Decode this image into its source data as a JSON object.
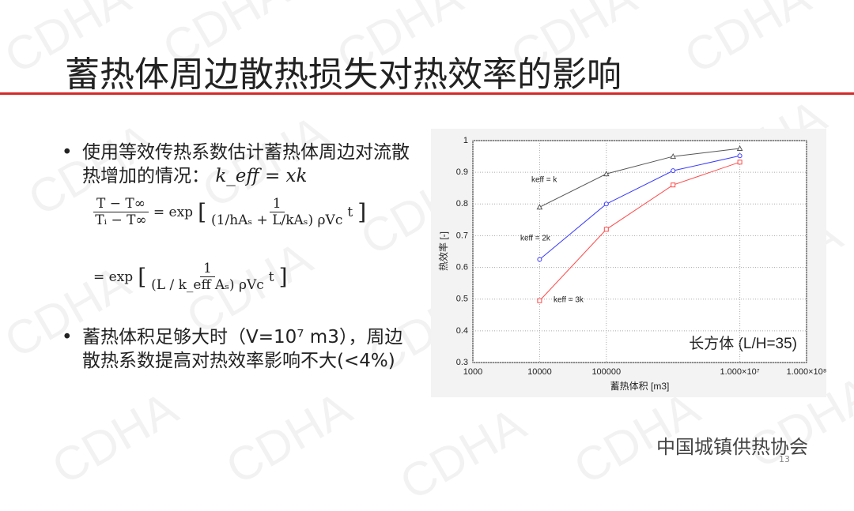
{
  "slide": {
    "title": "蓄热体周边散热损失对热效率的影响",
    "watermark": "CDHA",
    "bullet1": "使用等效传热系数估计蓄热体周边对流散热增加的情况：",
    "bullet1_math": "k_eff = xk",
    "eq1": {
      "lhs_num": "T − T∞",
      "lhs_den": "Tᵢ − T∞",
      "eq": "= exp",
      "num": "1",
      "den": "(1/hAₛ + L/kAₛ) ρVc",
      "t": "t"
    },
    "eq2": {
      "eq": "= exp",
      "num": "1",
      "den": "(L / k_eff Aₛ) ρVc",
      "t": "t"
    },
    "bullet2": "蓄热体积足够大时（V=10⁷ m3），周边散热系数提高对热效率影响不大(<4%)",
    "footer": "中国城镇供热协会",
    "page": "13"
  },
  "chart_data": {
    "type": "line",
    "x": [
      10000,
      100000,
      1000000,
      10000000
    ],
    "xlabel": "蓄热体积 [m3]",
    "ylabel": "热效率 [-]",
    "annotation": "长方体 (L/H=35)",
    "xlog": true,
    "grid": true,
    "xlim": [
      1000,
      100000000
    ],
    "xticks": [
      1000,
      10000,
      100000,
      {
        "value": 10000000,
        "label": "1.000×10⁷"
      },
      {
        "value": 100000000,
        "label": "1.000×10⁸"
      }
    ],
    "ylim": [
      0.3,
      1
    ],
    "yticks": [
      0.3,
      0.4,
      0.5,
      0.6,
      0.7,
      0.8,
      0.9,
      1
    ],
    "series": [
      {
        "name": "keff = k",
        "color": "#555555",
        "marker": "triangle",
        "values": [
          0.79,
          0.895,
          0.95,
          0.975
        ]
      },
      {
        "name": "keff = 2k",
        "color": "#3a3aff",
        "marker": "circle",
        "values": [
          0.625,
          0.8,
          0.905,
          0.952
        ]
      },
      {
        "name": "keff = 3k",
        "color": "#ff4a4a",
        "marker": "square",
        "values": [
          0.495,
          0.72,
          0.86,
          0.932
        ]
      }
    ]
  }
}
